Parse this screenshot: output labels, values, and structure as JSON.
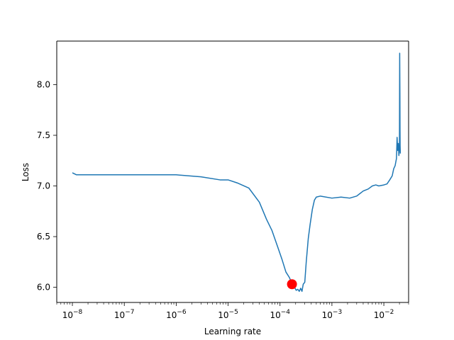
{
  "chart_data": {
    "type": "line",
    "title": "",
    "xlabel": "Learning rate",
    "ylabel": "Loss",
    "x_scale": "log",
    "xlim": [
      5e-09,
      0.03
    ],
    "ylim": [
      5.85,
      8.43
    ],
    "grid": false,
    "legend": "none",
    "x_ticks": [
      1e-08,
      1e-07,
      1e-06,
      1e-05,
      0.0001,
      0.001,
      0.01
    ],
    "x_tick_labels": [
      {
        "base": "10",
        "exp": "−8"
      },
      {
        "base": "10",
        "exp": "−7"
      },
      {
        "base": "10",
        "exp": "−6"
      },
      {
        "base": "10",
        "exp": "−5"
      },
      {
        "base": "10",
        "exp": "−4"
      },
      {
        "base": "10",
        "exp": "−3"
      },
      {
        "base": "10",
        "exp": "−2"
      }
    ],
    "y_ticks": [
      6.0,
      6.5,
      7.0,
      7.5,
      8.0
    ],
    "y_tick_labels": [
      "6.0",
      "6.5",
      "7.0",
      "7.5",
      "8.0"
    ],
    "series": [
      {
        "color": "#1f77b4",
        "x": [
          1e-08,
          1.2e-08,
          1e-07,
          3e-07,
          1e-06,
          3e-06,
          7e-06,
          1e-05,
          1.5e-05,
          2.5e-05,
          4e-05,
          5.5e-05,
          7e-05,
          9e-05,
          0.00011,
          0.00013,
          0.00015,
          0.00017,
          0.00019,
          0.000205,
          0.00022,
          0.000235,
          0.00025,
          0.000265,
          0.00028,
          0.0003,
          0.00032,
          0.00035,
          0.00038,
          0.00042,
          0.00046,
          0.0005,
          0.0006,
          0.001,
          0.0015,
          0.0022,
          0.003,
          0.004,
          0.005,
          0.006,
          0.007,
          0.008,
          0.01,
          0.0115,
          0.013,
          0.0145,
          0.0155,
          0.0165,
          0.0175,
          0.018,
          0.0185,
          0.019,
          0.0195,
          0.02,
          0.0202,
          0.0204,
          0.0205,
          0.0206,
          0.0208
        ],
        "y": [
          7.13,
          7.11,
          7.11,
          7.11,
          7.11,
          7.09,
          7.06,
          7.06,
          7.03,
          6.98,
          6.84,
          6.67,
          6.56,
          6.4,
          6.27,
          6.15,
          6.1,
          6.04,
          6.0,
          5.97,
          5.98,
          5.96,
          5.99,
          5.96,
          6.03,
          6.05,
          6.25,
          6.48,
          6.62,
          6.77,
          6.86,
          6.89,
          6.9,
          6.88,
          6.89,
          6.88,
          6.9,
          6.95,
          6.97,
          7.0,
          7.01,
          7.0,
          7.01,
          7.02,
          7.06,
          7.1,
          7.17,
          7.2,
          7.27,
          7.48,
          7.35,
          7.42,
          7.3,
          7.38,
          8.31,
          7.9,
          7.55,
          7.4,
          7.32
        ]
      }
    ],
    "marker": {
      "x": 0.00017,
      "y": 6.03,
      "color": "#ff0000"
    }
  }
}
